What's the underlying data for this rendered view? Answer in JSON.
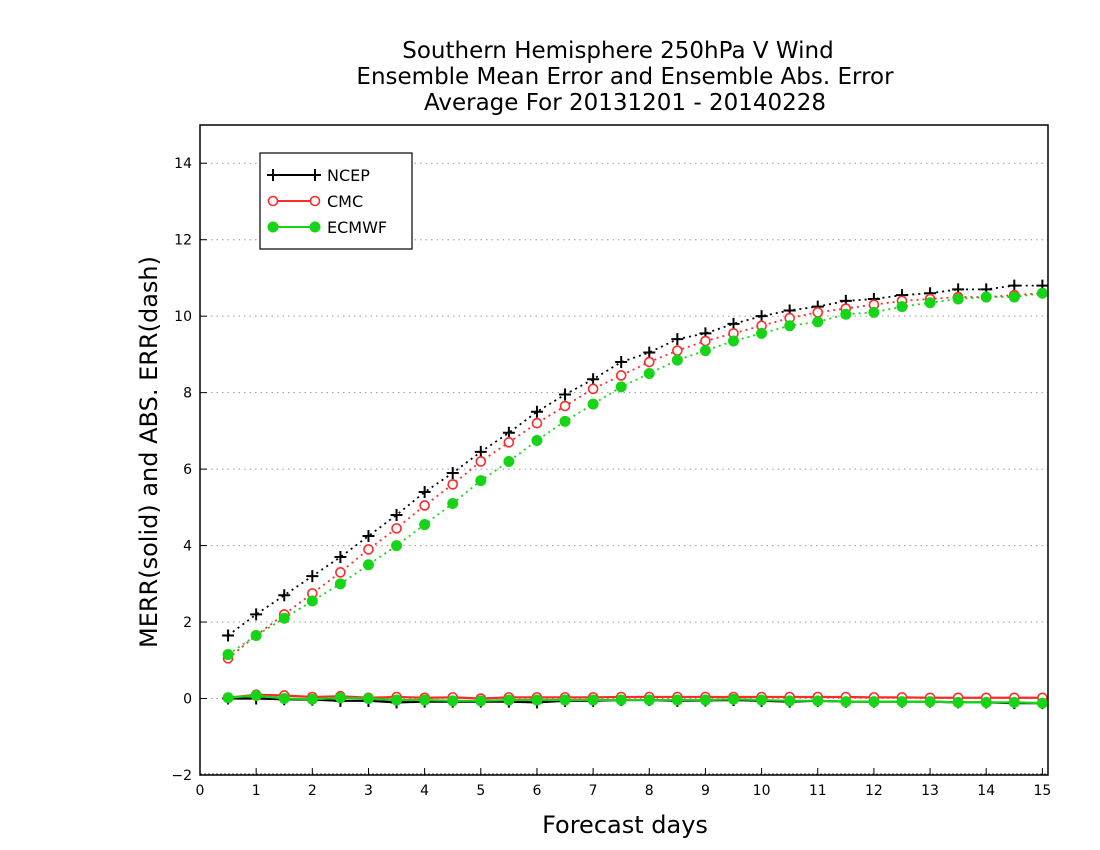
{
  "chart_data": {
    "type": "line",
    "title": [
      "Southern Hemisphere 250hPa V Wind",
      "Ensemble Mean Error and Ensemble Abs. Error",
      "Average For 20131201 - 20140228"
    ],
    "xlabel": "Forecast days",
    "ylabel": "MERR(solid) and ABS. ERR(dash)",
    "xlim": [
      0,
      15.1
    ],
    "ylim": [
      -2,
      15
    ],
    "xticks": [
      0,
      1,
      2,
      3,
      4,
      5,
      6,
      7,
      8,
      9,
      10,
      11,
      12,
      13,
      14,
      15
    ],
    "yticks": [
      -2,
      0,
      2,
      4,
      6,
      8,
      10,
      12,
      14
    ],
    "grid": "horizontal dotted",
    "legend_position": "top-left",
    "x": [
      0.5,
      1,
      1.5,
      2,
      2.5,
      3,
      3.5,
      4,
      4.5,
      5,
      5.5,
      6,
      6.5,
      7,
      7.5,
      8,
      8.5,
      9,
      9.5,
      10,
      10.5,
      11,
      11.5,
      12,
      12.5,
      13,
      13.5,
      14,
      14.5,
      15
    ],
    "series": [
      {
        "name": "NCEP",
        "color": "#000000",
        "marker": "plus",
        "abs_err": [
          1.65,
          2.2,
          2.7,
          3.2,
          3.7,
          4.25,
          4.8,
          5.4,
          5.9,
          6.45,
          6.95,
          7.5,
          7.95,
          8.35,
          8.8,
          9.05,
          9.4,
          9.55,
          9.8,
          10.0,
          10.15,
          10.25,
          10.4,
          10.45,
          10.55,
          10.6,
          10.7,
          10.7,
          10.8,
          10.8
        ],
        "mean_err": [
          0.0,
          0.0,
          -0.02,
          -0.03,
          -0.06,
          -0.06,
          -0.1,
          -0.08,
          -0.08,
          -0.08,
          -0.08,
          -0.1,
          -0.06,
          -0.06,
          -0.04,
          -0.04,
          -0.06,
          -0.05,
          -0.04,
          -0.06,
          -0.08,
          -0.06,
          -0.08,
          -0.08,
          -0.08,
          -0.08,
          -0.1,
          -0.1,
          -0.12,
          -0.12
        ]
      },
      {
        "name": "CMC",
        "color": "#ff2a2a",
        "marker": "open-circle",
        "abs_err": [
          1.05,
          1.65,
          2.2,
          2.75,
          3.3,
          3.9,
          4.45,
          5.05,
          5.6,
          6.2,
          6.7,
          7.2,
          7.65,
          8.1,
          8.45,
          8.8,
          9.1,
          9.35,
          9.55,
          9.75,
          9.95,
          10.1,
          10.2,
          10.3,
          10.4,
          10.45,
          10.5,
          10.5,
          10.55,
          10.6
        ],
        "mean_err": [
          0.02,
          0.1,
          0.08,
          0.04,
          0.06,
          0.02,
          0.04,
          0.02,
          0.03,
          0.0,
          0.03,
          0.03,
          0.03,
          0.03,
          0.04,
          0.04,
          0.04,
          0.04,
          0.04,
          0.04,
          0.04,
          0.04,
          0.04,
          0.03,
          0.03,
          0.02,
          0.02,
          0.02,
          0.02,
          0.02
        ]
      },
      {
        "name": "ECMWF",
        "color": "#16d516",
        "marker": "filled-circle",
        "abs_err": [
          1.15,
          1.65,
          2.1,
          2.55,
          3.0,
          3.5,
          4.0,
          4.55,
          5.1,
          5.7,
          6.2,
          6.75,
          7.25,
          7.7,
          8.15,
          8.5,
          8.85,
          9.1,
          9.35,
          9.55,
          9.75,
          9.85,
          10.05,
          10.1,
          10.25,
          10.35,
          10.45,
          10.5,
          10.5,
          10.6
        ],
        "mean_err": [
          0.02,
          0.08,
          0.0,
          -0.02,
          0.02,
          0.0,
          -0.04,
          -0.04,
          -0.06,
          -0.06,
          -0.04,
          -0.04,
          -0.04,
          -0.04,
          -0.04,
          -0.04,
          -0.04,
          -0.04,
          -0.02,
          -0.04,
          -0.06,
          -0.06,
          -0.08,
          -0.08,
          -0.08,
          -0.08,
          -0.1,
          -0.1,
          -0.1,
          -0.12
        ]
      }
    ]
  }
}
